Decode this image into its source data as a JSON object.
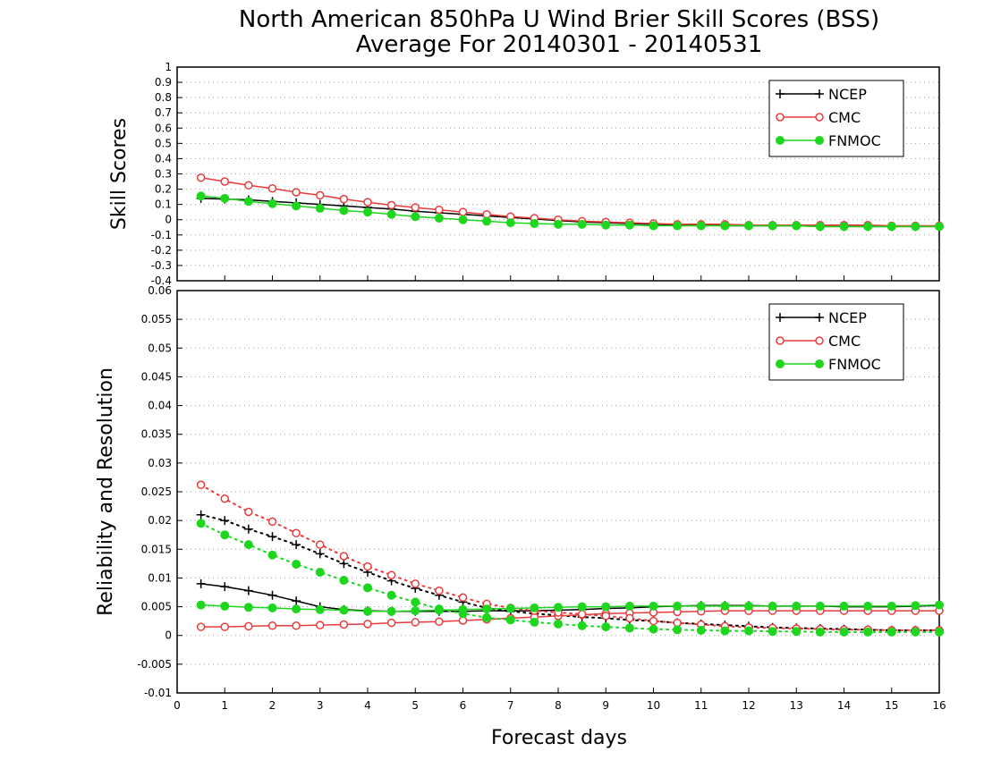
{
  "title_line1": "North American 850hPa U Wind Brier Skill Scores (BSS)",
  "title_line2": "Average For 20140301 - 20140531",
  "xlabel": "Forecast days",
  "colors": {
    "NCEP": "#000000",
    "CMC": "#e83c3c",
    "FNMOC": "#1fd61f"
  },
  "chart_data": [
    {
      "type": "line",
      "ylabel": "Skill Scores",
      "xlim": [
        0,
        16
      ],
      "ylim": [
        -0.4,
        1
      ],
      "x_ticks": [
        "0",
        "1",
        "2",
        "3",
        "4",
        "5",
        "6",
        "7",
        "8",
        "9",
        "10",
        "11",
        "12",
        "13",
        "14",
        "15",
        "16"
      ],
      "y_ticks": [
        "-0.4",
        "-0.3",
        "-0.2",
        "-0.1",
        "0",
        "0.1",
        "0.2",
        "0.3",
        "0.4",
        "0.5",
        "0.6",
        "0.7",
        "0.8",
        "0.9",
        "1"
      ],
      "grid": true,
      "legend": {
        "position": "top-right",
        "entries": [
          "NCEP",
          "CMC",
          "FNMOC"
        ]
      },
      "x": [
        0.5,
        1,
        1.5,
        2,
        2.5,
        3,
        3.5,
        4,
        4.5,
        5,
        5.5,
        6,
        6.5,
        7,
        7.5,
        8,
        8.5,
        9,
        9.5,
        10,
        10.5,
        11,
        11.5,
        12,
        12.5,
        13,
        13.5,
        14,
        14.5,
        15,
        15.5,
        16
      ],
      "series": [
        {
          "name": "NCEP",
          "style": "solid",
          "marker": "plus",
          "values": [
            0.14,
            0.135,
            0.13,
            0.12,
            0.11,
            0.1,
            0.09,
            0.08,
            0.07,
            0.055,
            0.045,
            0.035,
            0.025,
            0.015,
            0.005,
            -0.005,
            -0.015,
            -0.02,
            -0.025,
            -0.03,
            -0.035,
            -0.035,
            -0.04,
            -0.04,
            -0.04,
            -0.04,
            -0.045,
            -0.045,
            -0.045,
            -0.045,
            -0.045,
            -0.045
          ]
        },
        {
          "name": "CMC",
          "style": "solid",
          "marker": "open-circle",
          "values": [
            0.275,
            0.25,
            0.225,
            0.205,
            0.18,
            0.16,
            0.135,
            0.115,
            0.095,
            0.08,
            0.065,
            0.05,
            0.035,
            0.02,
            0.01,
            0.0,
            -0.01,
            -0.015,
            -0.02,
            -0.025,
            -0.03,
            -0.03,
            -0.03,
            -0.035,
            -0.035,
            -0.035,
            -0.035,
            -0.035,
            -0.035,
            -0.04,
            -0.04,
            -0.04
          ]
        },
        {
          "name": "FNMOC",
          "style": "solid",
          "marker": "filled-circle",
          "values": [
            0.155,
            0.14,
            0.12,
            0.105,
            0.09,
            0.075,
            0.06,
            0.05,
            0.035,
            0.02,
            0.01,
            0.0,
            -0.01,
            -0.02,
            -0.025,
            -0.03,
            -0.03,
            -0.035,
            -0.035,
            -0.04,
            -0.04,
            -0.04,
            -0.04,
            -0.04,
            -0.04,
            -0.04,
            -0.045,
            -0.045,
            -0.045,
            -0.045,
            -0.045,
            -0.045
          ]
        }
      ]
    },
    {
      "type": "line",
      "ylabel": "Reliability and Resolution",
      "xlim": [
        0,
        16
      ],
      "ylim": [
        -0.01,
        0.06
      ],
      "x_ticks": [
        "0",
        "1",
        "2",
        "3",
        "4",
        "5",
        "6",
        "7",
        "8",
        "9",
        "10",
        "11",
        "12",
        "13",
        "14",
        "15",
        "16"
      ],
      "y_ticks": [
        "-0.01",
        "-0.005",
        "0",
        "0.005",
        "0.01",
        "0.015",
        "0.02",
        "0.025",
        "0.03",
        "0.035",
        "0.04",
        "0.045",
        "0.05",
        "0.055",
        "0.06"
      ],
      "grid": true,
      "legend": {
        "position": "top-right",
        "entries": [
          "NCEP",
          "CMC",
          "FNMOC"
        ]
      },
      "x": [
        0.5,
        1,
        1.5,
        2,
        2.5,
        3,
        3.5,
        4,
        4.5,
        5,
        5.5,
        6,
        6.5,
        7,
        7.5,
        8,
        8.5,
        9,
        9.5,
        10,
        10.5,
        11,
        11.5,
        12,
        12.5,
        13,
        13.5,
        14,
        14.5,
        15,
        15.5,
        16
      ],
      "series": [
        {
          "name": "NCEP",
          "style": "solid",
          "marker": "plus",
          "values": [
            0.009,
            0.0085,
            0.0078,
            0.007,
            0.006,
            0.005,
            0.0045,
            0.0043,
            0.0042,
            0.0042,
            0.0042,
            0.0042,
            0.0043,
            0.0043,
            0.0043,
            0.0044,
            0.0045,
            0.0047,
            0.0048,
            0.005,
            0.0051,
            0.0052,
            0.0052,
            0.0052,
            0.0051,
            0.0051,
            0.0051,
            0.005,
            0.005,
            0.005,
            0.0051,
            0.0052
          ]
        },
        {
          "name": "NCEP",
          "style": "dotted",
          "marker": "plus",
          "values": [
            0.021,
            0.02,
            0.0185,
            0.0172,
            0.0158,
            0.0142,
            0.0125,
            0.011,
            0.0095,
            0.0082,
            0.007,
            0.0058,
            0.0048,
            0.0042,
            0.0038,
            0.0035,
            0.0032,
            0.003,
            0.0027,
            0.0025,
            0.0022,
            0.002,
            0.0018,
            0.0016,
            0.0014,
            0.0013,
            0.0012,
            0.0011,
            0.001,
            0.0009,
            0.0009,
            0.0009
          ]
        },
        {
          "name": "CMC",
          "style": "solid",
          "marker": "open-circle",
          "values": [
            0.0015,
            0.0015,
            0.0016,
            0.0017,
            0.0017,
            0.0018,
            0.0019,
            0.002,
            0.0022,
            0.0023,
            0.0024,
            0.0026,
            0.0028,
            0.003,
            0.0032,
            0.0034,
            0.0036,
            0.0038,
            0.0039,
            0.004,
            0.0041,
            0.0042,
            0.0043,
            0.0043,
            0.0043,
            0.0043,
            0.0043,
            0.0043,
            0.0043,
            0.0043,
            0.0043,
            0.0043
          ]
        },
        {
          "name": "CMC",
          "style": "dotted",
          "marker": "open-circle",
          "values": [
            0.0262,
            0.0238,
            0.0215,
            0.0198,
            0.0178,
            0.0158,
            0.0138,
            0.012,
            0.0105,
            0.009,
            0.0078,
            0.0066,
            0.0055,
            0.0048,
            0.0043,
            0.004,
            0.0037,
            0.0034,
            0.003,
            0.0025,
            0.0022,
            0.0019,
            0.0016,
            0.0014,
            0.0013,
            0.0012,
            0.0011,
            0.001,
            0.001,
            0.0009,
            0.0009,
            0.0009
          ]
        },
        {
          "name": "FNMOC",
          "style": "solid",
          "marker": "filled-circle",
          "values": [
            0.0053,
            0.0051,
            0.0049,
            0.0048,
            0.0046,
            0.0045,
            0.0044,
            0.0042,
            0.0042,
            0.0043,
            0.0044,
            0.0045,
            0.0046,
            0.0047,
            0.0048,
            0.0049,
            0.005,
            0.005,
            0.0051,
            0.0051,
            0.0051,
            0.0051,
            0.0051,
            0.0051,
            0.0051,
            0.0051,
            0.0051,
            0.0051,
            0.0051,
            0.0051,
            0.0052,
            0.0053
          ]
        },
        {
          "name": "FNMOC",
          "style": "dotted",
          "marker": "filled-circle",
          "values": [
            0.0195,
            0.0175,
            0.0158,
            0.014,
            0.0124,
            0.011,
            0.0096,
            0.0083,
            0.007,
            0.0058,
            0.0046,
            0.0038,
            0.0031,
            0.0027,
            0.0023,
            0.002,
            0.0017,
            0.0015,
            0.0013,
            0.0011,
            0.001,
            0.0009,
            0.0008,
            0.0008,
            0.0007,
            0.0007,
            0.0006,
            0.0006,
            0.0006,
            0.0006,
            0.0006,
            0.0006
          ]
        }
      ]
    }
  ]
}
